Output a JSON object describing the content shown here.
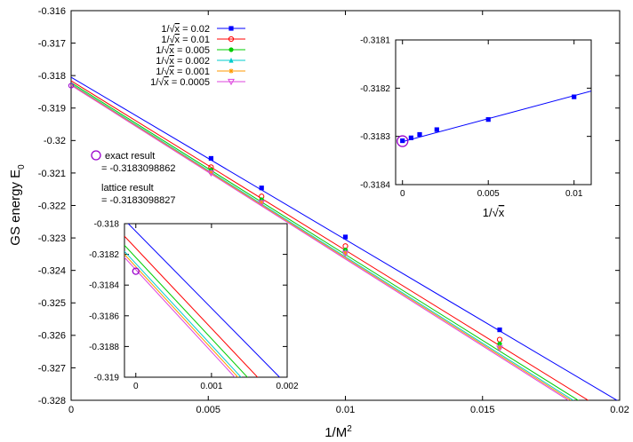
{
  "chart_data": [
    {
      "panel": "main",
      "type": "line",
      "xlabel_main": "1/M",
      "xlabel_sup": "2",
      "ylabel_main": "GS energy  E",
      "ylabel_sub": "0",
      "xlim": [
        0,
        0.02
      ],
      "ylim": [
        -0.328,
        -0.316
      ],
      "xticks": [
        0,
        0.005,
        0.01,
        0.015,
        0.02
      ],
      "xtick_labels": [
        "0",
        "0.005",
        "0.01",
        "0.015",
        "0.02"
      ],
      "yticks": [
        -0.328,
        -0.327,
        -0.326,
        -0.325,
        -0.324,
        -0.323,
        -0.322,
        -0.321,
        -0.32,
        -0.319,
        -0.318,
        -0.317,
        -0.316
      ],
      "ytick_labels": [
        "-0.328",
        "-0.327",
        "-0.326",
        "-0.325",
        "-0.324",
        "-0.323",
        "-0.322",
        "-0.321",
        "-0.32",
        "-0.319",
        "-0.318",
        "-0.317",
        "-0.316"
      ],
      "grid": false,
      "legend_placement": "top-center",
      "series": [
        {
          "label_pre": "1/",
          "label_rad": "x",
          "label_post": " = 0.02",
          "color": "#0000ff",
          "marker": "filled-square",
          "x": [
            0.005102,
            0.006944,
            0.01,
            0.015625
          ],
          "y": [
            -0.32055,
            -0.32146,
            -0.32297,
            -0.32583
          ],
          "fit_x": [
            0,
            0.02
          ],
          "fit_y": [
            -0.31805,
            -0.32805
          ]
        },
        {
          "label_pre": "1/",
          "label_rad": "x",
          "label_post": " = 0.01",
          "color": "#ff0000",
          "marker": "open-circle",
          "x": [
            0.005102,
            0.006944,
            0.01,
            0.015625
          ],
          "y": [
            -0.32082,
            -0.32172,
            -0.32325,
            -0.32613
          ],
          "fit_x": [
            0,
            0.02
          ],
          "fit_y": [
            -0.31816,
            -0.3286
          ]
        },
        {
          "label_pre": "1/",
          "label_rad": "x",
          "label_post": " = 0.005",
          "color": "#00cc00",
          "marker": "filled-circle",
          "x": [
            0.005102,
            0.006944,
            0.01,
            0.015625
          ],
          "y": [
            -0.32091,
            -0.32182,
            -0.32337,
            -0.32626
          ],
          "fit_x": [
            0,
            0.02
          ],
          "fit_y": [
            -0.31822,
            -0.3288
          ]
        },
        {
          "label_pre": "1/",
          "label_rad": "x",
          "label_post": " = 0.002",
          "color": "#00cccc",
          "marker": "filled-triangle",
          "x": [
            0.005102,
            0.006944,
            0.01,
            0.015625
          ],
          "y": [
            -0.32096,
            -0.32188,
            -0.32343,
            -0.32634
          ],
          "fit_x": [
            0,
            0.02
          ],
          "fit_y": [
            -0.31826,
            -0.3289
          ]
        },
        {
          "label_pre": "1/",
          "label_rad": "x",
          "label_post": " = 0.001",
          "color": "#ff9900",
          "marker": "star",
          "x": [
            0.005102,
            0.006944,
            0.01,
            0.015625
          ],
          "y": [
            -0.32098,
            -0.3219,
            -0.32346,
            -0.32637
          ],
          "fit_x": [
            0,
            0.02
          ],
          "fit_y": [
            -0.31828,
            -0.32895
          ]
        },
        {
          "label_pre": "1/",
          "label_rad": "x",
          "label_post": " = 0.0005",
          "color": "#dd44dd",
          "marker": "open-triangle-down",
          "x": [
            0.005102,
            0.006944,
            0.01,
            0.015625
          ],
          "y": [
            -0.321,
            -0.32192,
            -0.32348,
            -0.3264
          ],
          "fit_x": [
            0,
            0.02
          ],
          "fit_y": [
            -0.3183,
            -0.329
          ]
        }
      ],
      "exact_point": {
        "x": 0,
        "y": -0.3183098862,
        "color": "#9900cc",
        "marker": "open-circle"
      },
      "annotations": [
        "exact result",
        "= -0.3183098862",
        "lattice result",
        "= -0.3183098827"
      ]
    },
    {
      "panel": "inset-top-right",
      "type": "line",
      "xlabel_pre": "1/",
      "xlabel_rad": "x",
      "xlim": [
        -0.0004,
        0.011
      ],
      "ylim": [
        -0.3184,
        -0.3181
      ],
      "xticks": [
        0,
        0.005,
        0.01
      ],
      "xtick_labels": [
        "0",
        "0.005",
        "0.01"
      ],
      "yticks": [
        -0.3184,
        -0.3183,
        -0.3182,
        -0.3181
      ],
      "ytick_labels": [
        "-0.3184",
        "-0.3183",
        "-0.3182",
        "-0.3181"
      ],
      "color": "#0000ff",
      "x": [
        0,
        0.0005,
        0.001,
        0.002,
        0.005,
        0.01
      ],
      "y": [
        -0.318309,
        -0.318303,
        -0.318296,
        -0.318286,
        -0.318265,
        -0.318218
      ],
      "fit_x": [
        0,
        0.011
      ],
      "fit_y": [
        -0.318311,
        -0.318206
      ],
      "exact_point": {
        "x": 0,
        "y": -0.3183098862,
        "color": "#9900cc"
      }
    },
    {
      "panel": "inset-bottom-left",
      "type": "line",
      "xlim": [
        -0.00015,
        0.002
      ],
      "ylim": [
        -0.319,
        -0.318
      ],
      "xticks": [
        0,
        0.001,
        0.002
      ],
      "xtick_labels": [
        "0",
        "0.001",
        "0.002"
      ],
      "yticks": [
        -0.319,
        -0.3188,
        -0.3186,
        -0.3184,
        -0.3182,
        -0.318
      ],
      "ytick_labels": [
        "-0.319",
        "-0.3188",
        "-0.3186",
        "-0.3184",
        "-0.3182",
        "-0.318"
      ],
      "exact_point": {
        "x": 0,
        "y": -0.3183098862,
        "color": "#9900cc"
      }
    }
  ]
}
